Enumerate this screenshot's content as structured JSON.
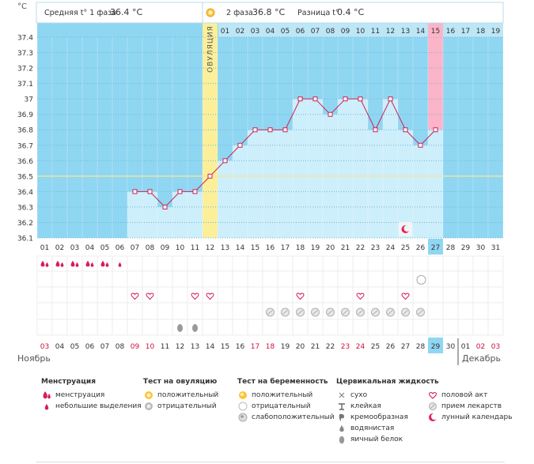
{
  "header": {
    "phase1_label": "Средняя t° 1 фаза",
    "phase1_value": "36.4 °C",
    "phase2_label": "2 фаза",
    "phase2_value": "36.8 °C",
    "diff_label": "Разница t°",
    "diff_value": "0.4 °C",
    "unit": "°C"
  },
  "ovulation_label": "ОВУЛЯЦИЯ",
  "chart_data": {
    "type": "line",
    "title": "",
    "ylabel": "°C",
    "ylim": [
      36.1,
      37.4
    ],
    "yticks": [
      "36.1",
      "36.2",
      "36.3",
      "36.4",
      "36.5",
      "36.6",
      "36.7",
      "36.8",
      "36.9",
      "37",
      "37.1",
      "37.2",
      "37.3",
      "37.4"
    ],
    "coverline": 36.5,
    "ovulation_day_index": 11,
    "cycle_days": [
      "01",
      "02",
      "03",
      "04",
      "05",
      "06",
      "07",
      "08",
      "09",
      "10",
      "11",
      "12",
      "13",
      "14",
      "15",
      "16",
      "17",
      "18",
      "19"
    ],
    "highlight_cycle_day": "15",
    "day_of_month": [
      "01",
      "02",
      "03",
      "04",
      "05",
      "06",
      "07",
      "08",
      "09",
      "10",
      "11",
      "12",
      "13",
      "14",
      "15",
      "16",
      "17",
      "18",
      "19",
      "20",
      "21",
      "22",
      "23",
      "24",
      "25",
      "26",
      "27",
      "28",
      "29",
      "30",
      "31"
    ],
    "highlight_day_of_month": "27",
    "dates_bottom": [
      "03",
      "04",
      "05",
      "06",
      "07",
      "08",
      "09",
      "10",
      "11",
      "12",
      "13",
      "14",
      "15",
      "16",
      "17",
      "18",
      "19",
      "20",
      "21",
      "22",
      "23",
      "24",
      "25",
      "26",
      "27",
      "28",
      "29",
      "30",
      "01",
      "02",
      "03"
    ],
    "dates_red": [
      0,
      6,
      7,
      14,
      15,
      20,
      21,
      29,
      30
    ],
    "highlight_date": "29",
    "temperatures": [
      null,
      null,
      null,
      null,
      null,
      null,
      36.4,
      36.4,
      36.3,
      36.4,
      36.4,
      36.5,
      36.6,
      36.7,
      36.8,
      36.8,
      36.8,
      37.0,
      37.0,
      36.9,
      37.0,
      37.0,
      36.8,
      37.0,
      36.8,
      36.7,
      36.8,
      null,
      null,
      null,
      null
    ]
  },
  "symptoms": {
    "menstruation": [
      0,
      1,
      2,
      3,
      4,
      5
    ],
    "menstruation_big": [
      0,
      1,
      2,
      3,
      4
    ],
    "pregnancy_test_negative": [
      25
    ],
    "intercourse": [
      6,
      7,
      10,
      11,
      17,
      21,
      24
    ],
    "medication": [
      15,
      16,
      17,
      18,
      19,
      20,
      21,
      22,
      23,
      24,
      25
    ],
    "egg_white": [
      9,
      10
    ],
    "lunar": [
      24
    ]
  },
  "months": {
    "left": "Ноябрь",
    "right": "Декабрь"
  },
  "legend": {
    "menstruation": {
      "title": "Менструация",
      "items": [
        "менструация",
        "небольшие выделения"
      ]
    },
    "ovulation_test": {
      "title": "Тест на овуляцию",
      "items": [
        "положительный",
        "отрицательный"
      ]
    },
    "pregnancy_test": {
      "title": "Тест на беременность",
      "items": [
        "положительный",
        "отрицательный",
        "слабоположительный"
      ]
    },
    "cervical": {
      "title": "Цервикальная жидкость",
      "items": [
        "сухо",
        "клейкая",
        "кремообразная",
        "водянистая",
        "яичный белок"
      ]
    },
    "other": {
      "items": [
        "половой акт",
        "прием лекарств",
        "лунный календарь"
      ]
    }
  },
  "colors": {
    "sky": "#8fd6f2",
    "bar": "#cdeefb",
    "line": "#cc2255",
    "ovulation": "#fbef9a",
    "highlight_pink": "#fbb4c8",
    "highlight_blue": "#8fd6f2",
    "red_text": "#d0103a"
  }
}
